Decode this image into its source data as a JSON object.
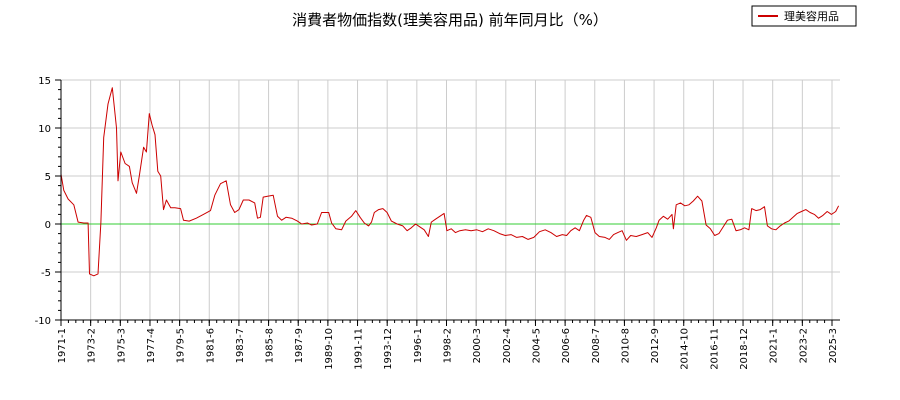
{
  "chart_data": {
    "type": "line",
    "title": "消費者物価指数(理美容用品) 前年同月比（%）",
    "xlabel": "",
    "ylabel": "",
    "ylim": [
      -10,
      15
    ],
    "yticks": [
      15,
      10,
      5,
      0,
      -5,
      -10
    ],
    "xticks": [
      "1971-1",
      "1973-2",
      "1975-3",
      "1977-4",
      "1979-5",
      "1981-6",
      "1983-7",
      "1985-8",
      "1987-9",
      "1989-10",
      "1991-11",
      "1993-12",
      "1996-1",
      "1998-2",
      "2000-3",
      "2002-4",
      "2004-5",
      "2006-6",
      "2008-7",
      "2010-8",
      "2012-9",
      "2014-10",
      "2016-11",
      "2018-12",
      "2021-1",
      "2023-2",
      "2025-3"
    ],
    "grid": true,
    "legend": "top-right",
    "reference_line": {
      "y": 0,
      "color": "#33cc33"
    },
    "series": [
      {
        "name": "理美容用品",
        "color": "#cc0000",
        "points": [
          [
            1971.0,
            5.2
          ],
          [
            1971.2,
            3.5
          ],
          [
            1971.5,
            2.6
          ],
          [
            1971.9,
            2.0
          ],
          [
            1972.2,
            0.2
          ],
          [
            1972.6,
            0.1
          ],
          [
            1972.9,
            0.1
          ],
          [
            1973.0,
            -5.2
          ],
          [
            1973.3,
            -5.4
          ],
          [
            1973.6,
            -5.2
          ],
          [
            1973.8,
            0.2
          ],
          [
            1974.0,
            9.0
          ],
          [
            1974.3,
            12.5
          ],
          [
            1974.6,
            14.2
          ],
          [
            1974.9,
            10.0
          ],
          [
            1975.0,
            4.5
          ],
          [
            1975.2,
            7.5
          ],
          [
            1975.5,
            6.3
          ],
          [
            1975.8,
            6.0
          ],
          [
            1976.0,
            4.3
          ],
          [
            1976.3,
            3.2
          ],
          [
            1976.5,
            5.0
          ],
          [
            1976.8,
            8.0
          ],
          [
            1977.0,
            7.5
          ],
          [
            1977.2,
            11.5
          ],
          [
            1977.4,
            10.3
          ],
          [
            1977.6,
            9.3
          ],
          [
            1977.8,
            5.5
          ],
          [
            1978.0,
            5.0
          ],
          [
            1978.2,
            1.5
          ],
          [
            1978.4,
            2.5
          ],
          [
            1978.7,
            1.7
          ],
          [
            1979.0,
            1.7
          ],
          [
            1979.4,
            1.6
          ],
          [
            1979.6,
            0.4
          ],
          [
            1980.0,
            0.3
          ],
          [
            1980.5,
            0.6
          ],
          [
            1981.0,
            1.0
          ],
          [
            1981.5,
            1.4
          ],
          [
            1981.8,
            3.0
          ],
          [
            1982.2,
            4.2
          ],
          [
            1982.6,
            4.5
          ],
          [
            1982.9,
            2.0
          ],
          [
            1983.2,
            1.2
          ],
          [
            1983.5,
            1.5
          ],
          [
            1983.8,
            2.5
          ],
          [
            1984.2,
            2.5
          ],
          [
            1984.6,
            2.2
          ],
          [
            1984.8,
            0.6
          ],
          [
            1985.0,
            0.7
          ],
          [
            1985.2,
            2.8
          ],
          [
            1985.5,
            2.9
          ],
          [
            1985.9,
            3.0
          ],
          [
            1986.2,
            0.8
          ],
          [
            1986.5,
            0.4
          ],
          [
            1986.8,
            0.7
          ],
          [
            1987.2,
            0.6
          ],
          [
            1987.6,
            0.3
          ],
          [
            1987.9,
            0.0
          ],
          [
            1988.3,
            0.1
          ],
          [
            1988.6,
            -0.1
          ],
          [
            1989.0,
            0.0
          ],
          [
            1989.3,
            1.2
          ],
          [
            1989.8,
            1.2
          ],
          [
            1990.0,
            0.1
          ],
          [
            1990.3,
            -0.5
          ],
          [
            1990.7,
            -0.6
          ],
          [
            1991.0,
            0.3
          ],
          [
            1991.4,
            0.8
          ],
          [
            1991.7,
            1.4
          ],
          [
            1992.0,
            0.7
          ],
          [
            1992.3,
            0.1
          ],
          [
            1992.6,
            -0.2
          ],
          [
            1992.8,
            0.2
          ],
          [
            1993.0,
            1.2
          ],
          [
            1993.3,
            1.5
          ],
          [
            1993.6,
            1.6
          ],
          [
            1993.9,
            1.2
          ],
          [
            1994.2,
            0.3
          ],
          [
            1994.6,
            0.0
          ],
          [
            1995.0,
            -0.2
          ],
          [
            1995.3,
            -0.7
          ],
          [
            1995.6,
            -0.4
          ],
          [
            1995.9,
            0.0
          ],
          [
            1996.2,
            -0.3
          ],
          [
            1996.5,
            -0.6
          ],
          [
            1996.8,
            -1.3
          ],
          [
            1997.0,
            0.2
          ],
          [
            1997.3,
            0.5
          ],
          [
            1997.6,
            0.8
          ],
          [
            1997.9,
            1.1
          ],
          [
            1998.1,
            -0.7
          ],
          [
            1998.4,
            -0.5
          ],
          [
            1998.7,
            -0.9
          ],
          [
            1999.0,
            -0.7
          ],
          [
            1999.4,
            -0.6
          ],
          [
            1999.8,
            -0.7
          ],
          [
            2000.2,
            -0.6
          ],
          [
            2000.6,
            -0.8
          ],
          [
            2001.0,
            -0.5
          ],
          [
            2001.4,
            -0.7
          ],
          [
            2001.8,
            -1.0
          ],
          [
            2002.2,
            -1.2
          ],
          [
            2002.6,
            -1.1
          ],
          [
            2003.0,
            -1.4
          ],
          [
            2003.4,
            -1.3
          ],
          [
            2003.8,
            -1.6
          ],
          [
            2004.2,
            -1.4
          ],
          [
            2004.6,
            -0.8
          ],
          [
            2005.0,
            -0.6
          ],
          [
            2005.4,
            -0.9
          ],
          [
            2005.8,
            -1.3
          ],
          [
            2006.2,
            -1.1
          ],
          [
            2006.5,
            -1.2
          ],
          [
            2006.8,
            -0.7
          ],
          [
            2007.1,
            -0.4
          ],
          [
            2007.4,
            -0.7
          ],
          [
            2007.7,
            0.4
          ],
          [
            2007.9,
            0.9
          ],
          [
            2008.2,
            0.7
          ],
          [
            2008.5,
            -0.9
          ],
          [
            2008.8,
            -1.3
          ],
          [
            2009.2,
            -1.4
          ],
          [
            2009.5,
            -1.6
          ],
          [
            2009.8,
            -1.1
          ],
          [
            2010.1,
            -0.9
          ],
          [
            2010.4,
            -0.7
          ],
          [
            2010.7,
            -1.7
          ],
          [
            2011.0,
            -1.2
          ],
          [
            2011.4,
            -1.3
          ],
          [
            2011.8,
            -1.1
          ],
          [
            2012.2,
            -0.9
          ],
          [
            2012.5,
            -1.4
          ],
          [
            2012.8,
            -0.4
          ],
          [
            2013.0,
            0.4
          ],
          [
            2013.3,
            0.8
          ],
          [
            2013.6,
            0.5
          ],
          [
            2013.9,
            1.0
          ],
          [
            2014.0,
            -0.5
          ],
          [
            2014.2,
            2.0
          ],
          [
            2014.5,
            2.2
          ],
          [
            2014.8,
            1.9
          ],
          [
            2015.1,
            2.0
          ],
          [
            2015.4,
            2.4
          ],
          [
            2015.7,
            2.9
          ],
          [
            2016.0,
            2.4
          ],
          [
            2016.3,
            -0.1
          ],
          [
            2016.6,
            -0.5
          ],
          [
            2016.9,
            -1.2
          ],
          [
            2017.2,
            -1.0
          ],
          [
            2017.5,
            -0.3
          ],
          [
            2017.8,
            0.4
          ],
          [
            2018.1,
            0.5
          ],
          [
            2018.4,
            -0.7
          ],
          [
            2018.7,
            -0.6
          ],
          [
            2019.0,
            -0.4
          ],
          [
            2019.3,
            -0.6
          ],
          [
            2019.5,
            1.6
          ],
          [
            2019.8,
            1.4
          ],
          [
            2020.1,
            1.5
          ],
          [
            2020.4,
            1.8
          ],
          [
            2020.6,
            -0.2
          ],
          [
            2020.9,
            -0.5
          ],
          [
            2021.2,
            -0.6
          ],
          [
            2021.5,
            -0.2
          ],
          [
            2021.8,
            0.1
          ],
          [
            2022.1,
            0.3
          ],
          [
            2022.4,
            0.7
          ],
          [
            2022.7,
            1.1
          ],
          [
            2023.0,
            1.3
          ],
          [
            2023.3,
            1.5
          ],
          [
            2023.6,
            1.2
          ],
          [
            2023.9,
            1.0
          ],
          [
            2024.2,
            0.6
          ],
          [
            2024.5,
            0.9
          ],
          [
            2024.8,
            1.3
          ],
          [
            2025.1,
            1.0
          ],
          [
            2025.4,
            1.3
          ],
          [
            2025.6,
            1.9
          ]
        ]
      }
    ]
  }
}
